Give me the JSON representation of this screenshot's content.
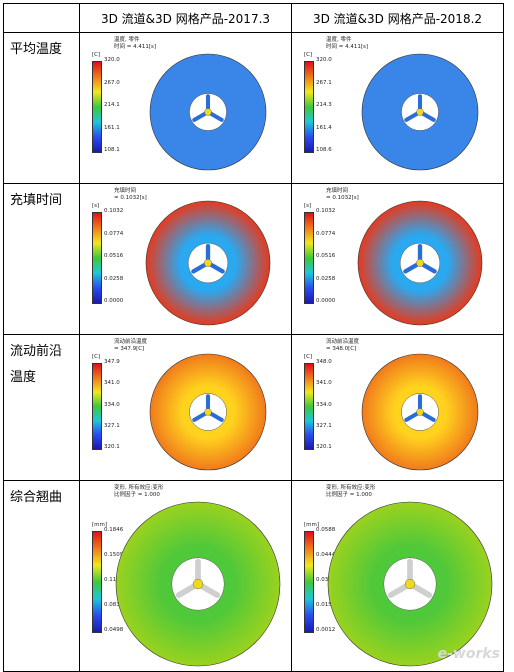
{
  "header": {
    "col1": "3D 流道&3D 网格产品-2017.3",
    "col2": "3D 流道&3D 网格产品-2018.2"
  },
  "rows": [
    {
      "label": "平均温度",
      "colors": {
        "outer": "#3a86e8",
        "inner": "#3a86e8"
      },
      "left": {
        "note": "温度, 零件\n时间 = 4.411[s]",
        "unit": "[C]",
        "ticks": [
          "320.0",
          "267.0",
          "214.1",
          "161.1",
          "108.1"
        ]
      },
      "right": {
        "note": "温度, 零件\n时间 = 4.411[s]",
        "unit": "[C]",
        "ticks": [
          "320.0",
          "267.1",
          "214.3",
          "161.4",
          "108.6"
        ]
      }
    },
    {
      "label": "充填时间",
      "colors": {
        "outer": "#e63a1e",
        "inner": "#2aa8f0"
      },
      "left": {
        "note": "充填时间\n= 0.1032[s]",
        "unit": "[s]",
        "ticks": [
          "0.1032",
          "0.0774",
          "0.0516",
          "0.0258",
          "0.0000"
        ]
      },
      "right": {
        "note": "充填时间\n= 0.1032[s]",
        "unit": "[s]",
        "ticks": [
          "0.1032",
          "0.0774",
          "0.0516",
          "0.0258",
          "0.0000"
        ]
      }
    },
    {
      "label": "流动前沿温度",
      "colors": {
        "outer": "#f07a1c",
        "inner": "#ffd21e"
      },
      "left": {
        "note": "流动前沿温度\n= 347.9[C]",
        "unit": "[C]",
        "ticks": [
          "347.9",
          "341.0",
          "334.0",
          "327.1",
          "320.1"
        ]
      },
      "right": {
        "note": "流动前沿温度\n= 348.0[C]",
        "unit": "[C]",
        "ticks": [
          "348.0",
          "341.0",
          "334.0",
          "327.1",
          "320.1"
        ]
      }
    },
    {
      "label": "综合翘曲",
      "colors": {
        "outer": "#9ad21e",
        "inner": "#4fc83a"
      },
      "left": {
        "note": "变形, 所有效应:变形\n比例因子 = 1.000",
        "unit": "[mm]",
        "ticks": [
          "0.1846",
          "0.1509",
          "0.1172",
          "0.0835",
          "0.0498"
        ]
      },
      "right": {
        "note": "变形, 所有效应:变形\n比例因子 = 1.000",
        "unit": "[mm]",
        "ticks": [
          "0.0588",
          "0.0444",
          "0.0300",
          "0.0156",
          "0.0012"
        ]
      }
    }
  ],
  "watermark": "e-works"
}
